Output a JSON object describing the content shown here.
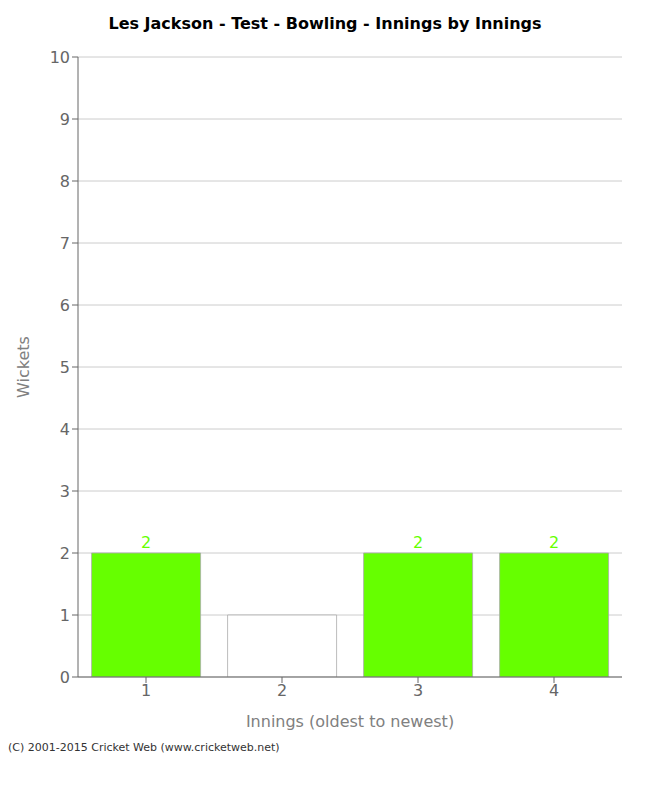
{
  "chart_data": {
    "type": "bar",
    "title": "Les Jackson - Test - Bowling - Innings by Innings",
    "x_label": "Innings (oldest to newest)",
    "y_label": "Wickets",
    "x": [
      1,
      2,
      3,
      4
    ],
    "values": [
      2,
      1,
      2,
      2
    ],
    "colors": [
      "#66ff00",
      "#ffffff",
      "#66ff00",
      "#66ff00"
    ],
    "xlim": [
      0.5,
      4.5
    ],
    "xticks": [
      1,
      2,
      3,
      4
    ],
    "ylim": [
      0,
      10
    ],
    "yticks": [
      0,
      1,
      2,
      3,
      4,
      5,
      6,
      7,
      8,
      9,
      10
    ],
    "grid": true,
    "data_labels": true,
    "annotations": [
      "(C) 2001-2015 Cricket Web (www.cricketweb.net)"
    ]
  }
}
